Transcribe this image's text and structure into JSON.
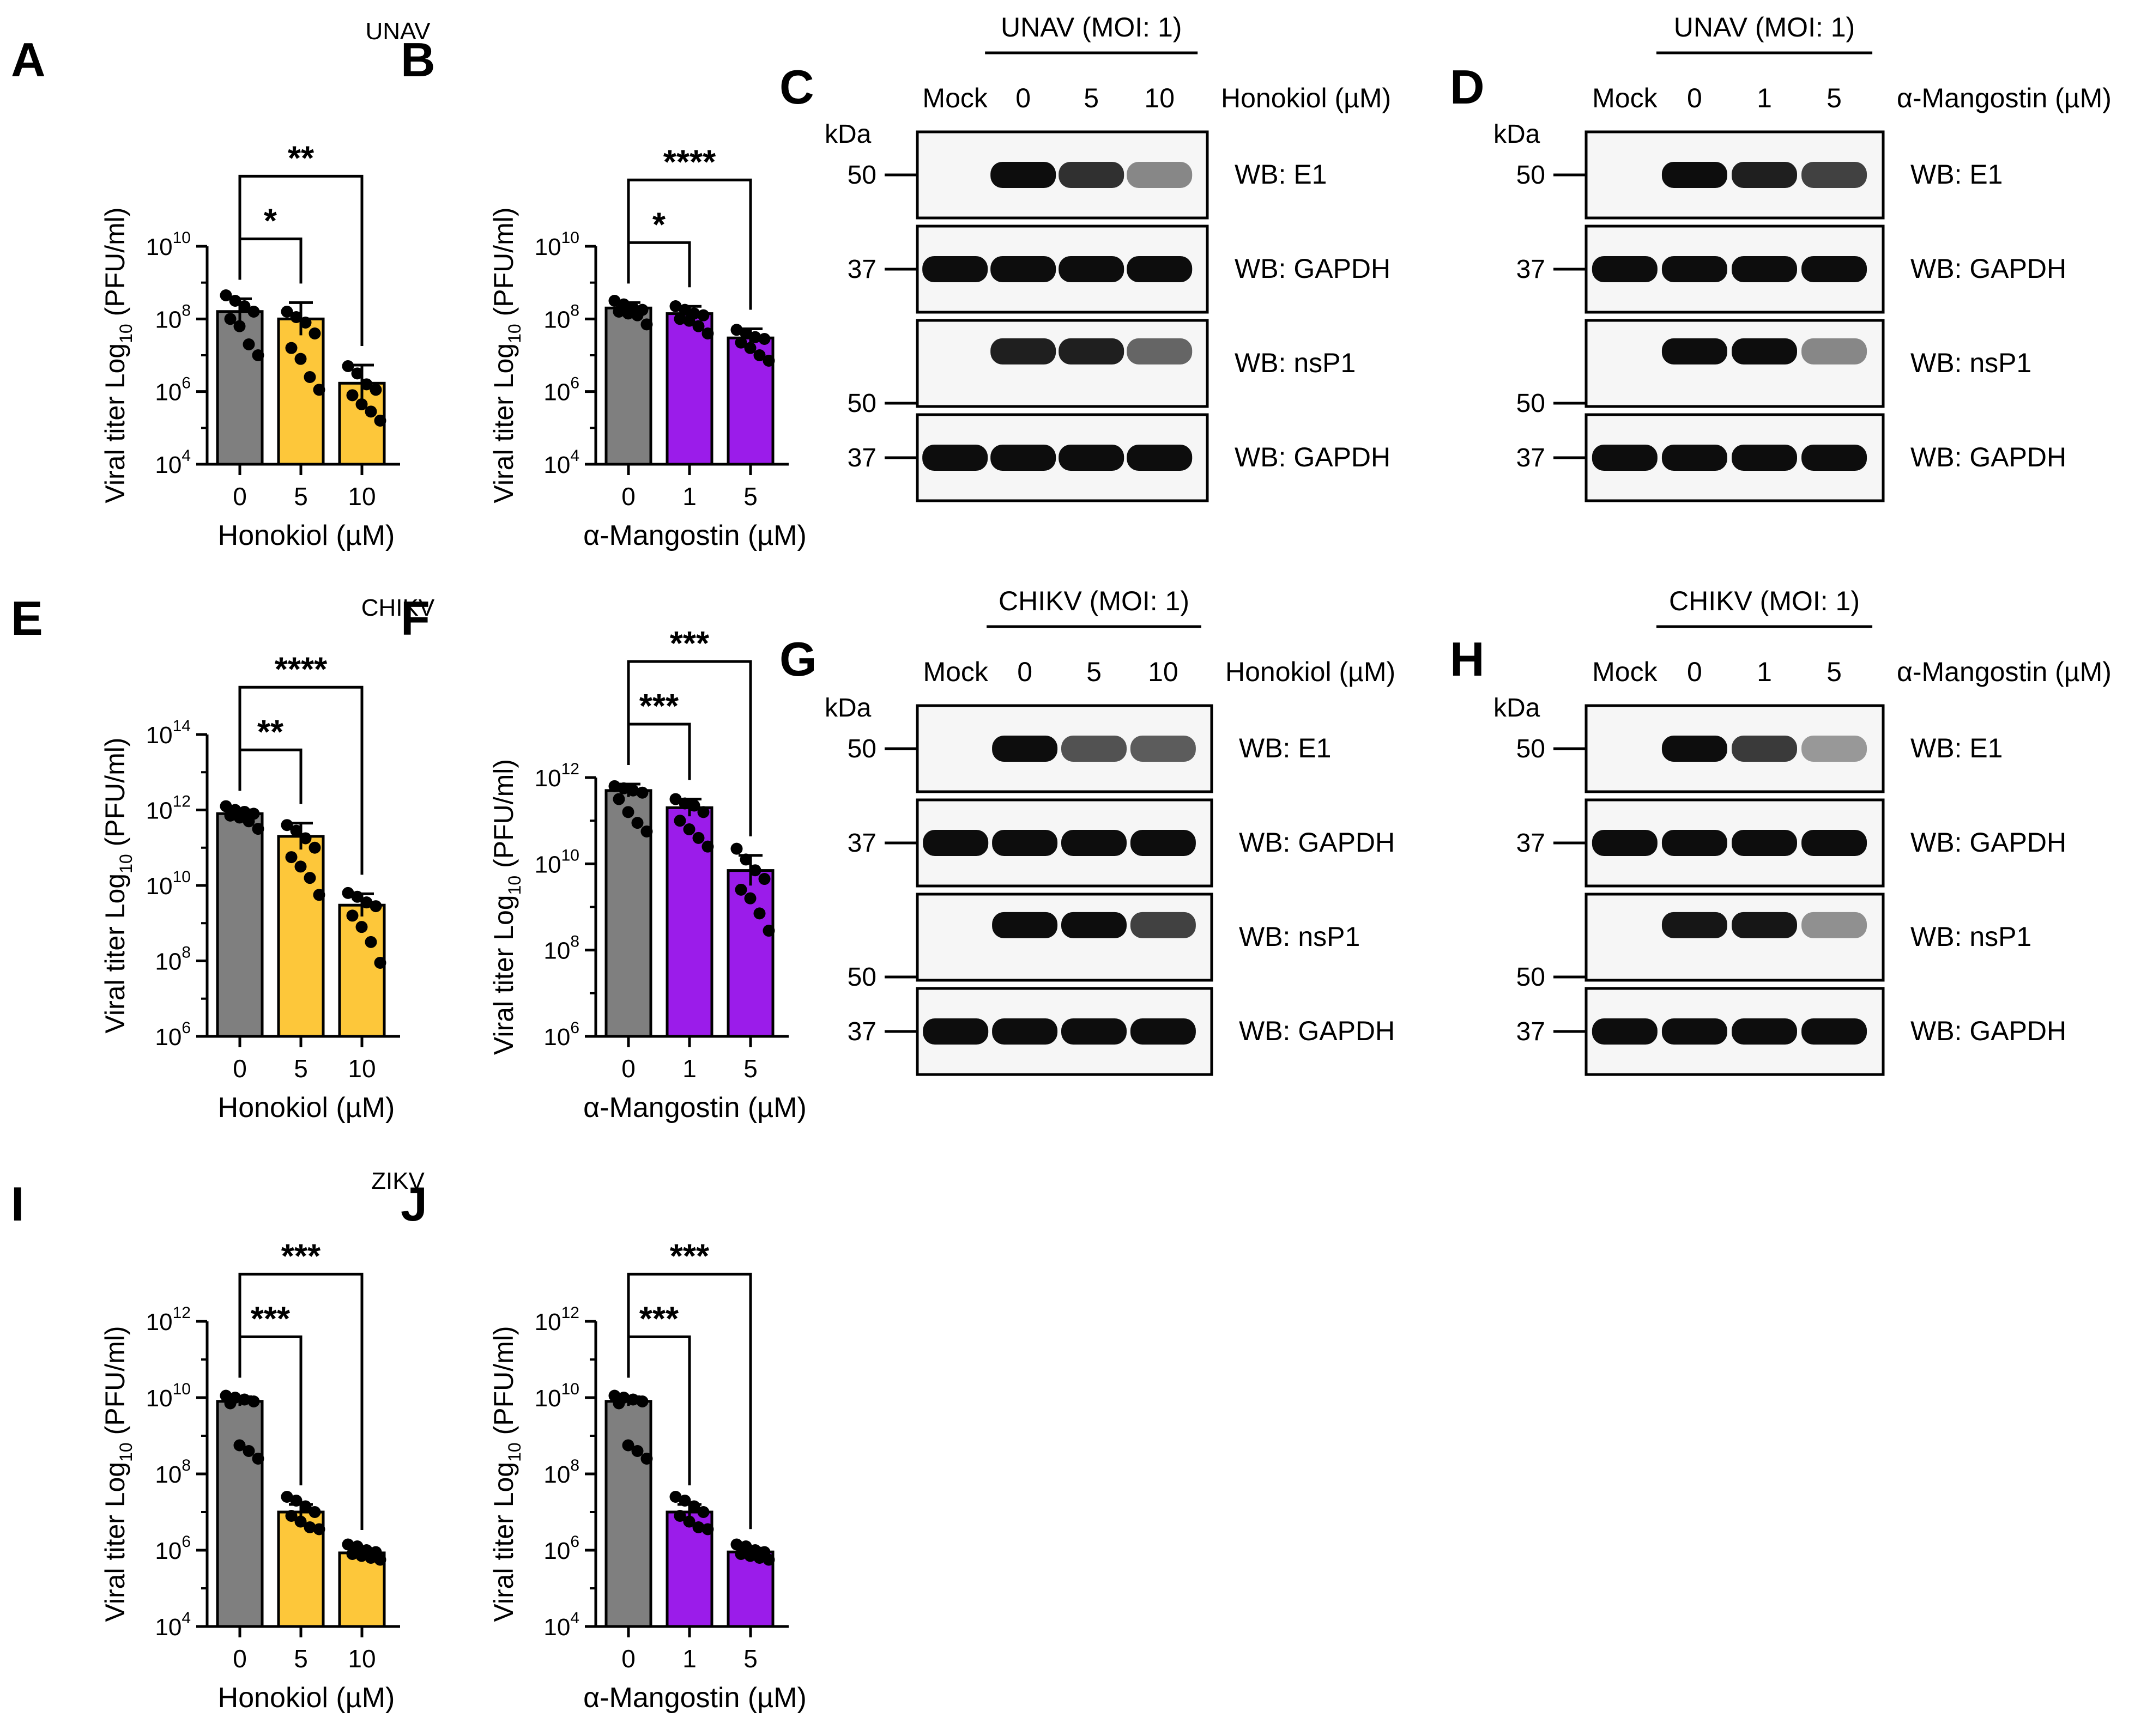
{
  "figure": {
    "groups": [
      "UNAV",
      "CHIKV",
      "ZIKV"
    ]
  },
  "colors": {
    "control": "#7f7f7f",
    "honokiol": "#fdc73a",
    "mangostin": "#9b1cea",
    "dot": "#000000"
  },
  "chart_data": [
    {
      "panel": "A",
      "type": "bar",
      "virus": "UNAV",
      "categories": [
        "0",
        "5",
        "10"
      ],
      "xlabel": "Honokiol (µM)",
      "ylabel_main": "Viral titer Log",
      "ylabel_sub": "10",
      "ylabel_tail": " (PFU/ml)",
      "yscale": "log10",
      "ylim_exp": [
        4,
        10
      ],
      "yticks_exp": [
        4,
        6,
        8,
        10
      ],
      "series": [
        {
          "name": "titer",
          "values": [
            160000000.0,
            100000000.0,
            1700000.0
          ],
          "errors_exp": [
            0.35,
            0.45,
            0.5
          ]
        }
      ],
      "points_exp": [
        [
          8.65,
          8.5,
          8.35,
          8.2,
          8.0,
          7.8,
          7.3,
          7.0
        ],
        [
          8.2,
          8.05,
          7.9,
          7.6,
          7.2,
          6.9,
          6.4,
          6.05
        ],
        [
          6.7,
          6.5,
          6.2,
          6.05,
          5.9,
          5.65,
          5.45,
          5.2
        ]
      ],
      "colors": [
        "control",
        "honokiol",
        "honokiol"
      ],
      "significance": [
        {
          "from": 0,
          "to": 1,
          "label": "*"
        },
        {
          "from": 0,
          "to": 2,
          "label": "**"
        }
      ]
    },
    {
      "panel": "B",
      "type": "bar",
      "virus": "UNAV",
      "categories": [
        "0",
        "1",
        "5"
      ],
      "xlabel": "α-Mangostin (µM)",
      "ylabel_main": "Viral titer Log",
      "ylabel_sub": "10",
      "ylabel_tail": " (PFU/ml)",
      "yscale": "log10",
      "ylim_exp": [
        4,
        10
      ],
      "yticks_exp": [
        4,
        6,
        8,
        10
      ],
      "series": [
        {
          "name": "titer",
          "values": [
            200000000.0,
            140000000.0,
            30000000.0
          ],
          "errors_exp": [
            0.15,
            0.2,
            0.25
          ]
        }
      ],
      "points_exp": [
        [
          8.5,
          8.4,
          8.3,
          8.25,
          8.2,
          8.15,
          8.1,
          7.85
        ],
        [
          8.35,
          8.25,
          8.15,
          8.1,
          8.0,
          7.95,
          7.8,
          7.6
        ],
        [
          7.7,
          7.6,
          7.5,
          7.45,
          7.35,
          7.2,
          7.0,
          6.85
        ]
      ],
      "colors": [
        "control",
        "mangostin",
        "mangostin"
      ],
      "significance": [
        {
          "from": 0,
          "to": 1,
          "label": "*"
        },
        {
          "from": 0,
          "to": 2,
          "label": "****"
        }
      ]
    },
    {
      "panel": "E",
      "type": "bar",
      "virus": "CHIKV",
      "categories": [
        "0",
        "5",
        "10"
      ],
      "xlabel": "Honokiol (µM)",
      "ylabel_main": "Viral titer Log",
      "ylabel_sub": "10",
      "ylabel_tail": " (PFU/ml)",
      "yscale": "log10",
      "ylim_exp": [
        6,
        14
      ],
      "yticks_exp": [
        6,
        8,
        10,
        12,
        14
      ],
      "series": [
        {
          "name": "titer",
          "values": [
            800000000000.0,
            200000000000.0,
            3000000000.0
          ],
          "errors_exp": [
            0.1,
            0.35,
            0.3
          ]
        }
      ],
      "points_exp": [
        [
          12.1,
          12.0,
          11.95,
          11.9,
          11.85,
          11.8,
          11.7,
          11.5
        ],
        [
          11.6,
          11.45,
          11.25,
          11.0,
          10.75,
          10.5,
          10.2,
          9.75
        ],
        [
          9.8,
          9.7,
          9.55,
          9.45,
          9.2,
          8.9,
          8.5,
          7.95
        ]
      ],
      "colors": [
        "control",
        "honokiol",
        "honokiol"
      ],
      "significance": [
        {
          "from": 0,
          "to": 1,
          "label": "**"
        },
        {
          "from": 0,
          "to": 2,
          "label": "****"
        }
      ]
    },
    {
      "panel": "F",
      "type": "bar",
      "virus": "CHIKV",
      "categories": [
        "0",
        "1",
        "5"
      ],
      "xlabel": "α-Mangostin (µM)",
      "ylabel_main": "Viral titer Log",
      "ylabel_sub": "10",
      "ylabel_tail": " (PFU/ml)",
      "yscale": "log10",
      "ylim_exp": [
        6,
        12
      ],
      "yticks_exp": [
        6,
        8,
        10,
        12
      ],
      "series": [
        {
          "name": "titer",
          "values": [
            500000000000.0,
            200000000000.0,
            7000000000.0
          ],
          "errors_exp": [
            0.15,
            0.2,
            0.35
          ]
        }
      ],
      "points_exp": [
        [
          11.8,
          11.75,
          11.7,
          11.65,
          11.5,
          11.2,
          10.95,
          10.75
        ],
        [
          11.5,
          11.4,
          11.35,
          11.2,
          11.0,
          10.8,
          10.6,
          10.4
        ],
        [
          10.35,
          10.1,
          9.85,
          9.65,
          9.4,
          9.2,
          8.85,
          8.45
        ]
      ],
      "colors": [
        "control",
        "mangostin",
        "mangostin"
      ],
      "significance": [
        {
          "from": 0,
          "to": 1,
          "label": "***"
        },
        {
          "from": 0,
          "to": 2,
          "label": "***"
        }
      ]
    },
    {
      "panel": "I",
      "type": "bar",
      "virus": "ZIKV",
      "categories": [
        "0",
        "5",
        "10"
      ],
      "xlabel": "Honokiol (µM)",
      "ylabel_main": "Viral titer Log",
      "ylabel_sub": "10",
      "ylabel_tail": " (PFU/ml)",
      "yscale": "log10",
      "ylim_exp": [
        4,
        12
      ],
      "yticks_exp": [
        4,
        6,
        8,
        10,
        12
      ],
      "series": [
        {
          "name": "titer",
          "values": [
            8000000000.0,
            10000000.0,
            850000.0
          ],
          "errors_exp": [
            0.12,
            0.2,
            0.1
          ]
        }
      ],
      "points_exp": [
        [
          10.05,
          10.0,
          9.95,
          9.9,
          9.85,
          8.75,
          8.6,
          8.4
        ],
        [
          7.4,
          7.3,
          7.15,
          7.0,
          6.9,
          6.75,
          6.6,
          6.55
        ],
        [
          6.15,
          6.1,
          6.0,
          5.95,
          5.9,
          5.85,
          5.8,
          5.75
        ]
      ],
      "colors": [
        "control",
        "honokiol",
        "honokiol"
      ],
      "significance": [
        {
          "from": 0,
          "to": 1,
          "label": "***"
        },
        {
          "from": 0,
          "to": 2,
          "label": "***"
        }
      ]
    },
    {
      "panel": "J",
      "type": "bar",
      "virus": "ZIKV",
      "categories": [
        "0",
        "1",
        "5"
      ],
      "xlabel": "α-Mangostin (µM)",
      "ylabel_main": "Viral titer Log",
      "ylabel_sub": "10",
      "ylabel_tail": " (PFU/ml)",
      "yscale": "log10",
      "ylim_exp": [
        4,
        12
      ],
      "yticks_exp": [
        4,
        6,
        8,
        10,
        12
      ],
      "series": [
        {
          "name": "titer",
          "values": [
            8000000000.0,
            10000000.0,
            900000.0
          ],
          "errors_exp": [
            0.12,
            0.2,
            0.1
          ]
        }
      ],
      "points_exp": [
        [
          10.05,
          10.0,
          9.95,
          9.9,
          9.85,
          8.75,
          8.6,
          8.4
        ],
        [
          7.4,
          7.3,
          7.15,
          7.0,
          6.9,
          6.75,
          6.6,
          6.55
        ],
        [
          6.15,
          6.1,
          6.0,
          5.95,
          5.9,
          5.85,
          5.8,
          5.75
        ]
      ],
      "colors": [
        "control",
        "mangostin",
        "mangostin"
      ],
      "significance": [
        {
          "from": 0,
          "to": 1,
          "label": "***"
        },
        {
          "from": 0,
          "to": 2,
          "label": "***"
        }
      ]
    }
  ],
  "blots": [
    {
      "panel": "C",
      "header": "UNAV (MOI: 1)",
      "lanes": [
        "Mock",
        "0",
        "5",
        "10"
      ],
      "treatment": "Honokiol (µM)",
      "kda_label": "kDa",
      "rows": [
        {
          "marker": "50",
          "label": "WB: E1",
          "intensity": [
            0,
            1.0,
            0.8,
            0.3
          ]
        },
        {
          "marker": "37",
          "label": "WB: GAPDH",
          "intensity": [
            1.0,
            1.0,
            1.0,
            1.0
          ]
        },
        {
          "marker": "50",
          "label": "WB: nsP1",
          "intensity": [
            0,
            0.9,
            0.9,
            0.5
          ]
        },
        {
          "marker": "37",
          "label": "WB: GAPDH",
          "intensity": [
            1.0,
            1.0,
            1.0,
            1.0
          ]
        }
      ]
    },
    {
      "panel": "D",
      "header": "UNAV (MOI: 1)",
      "lanes": [
        "Mock",
        "0",
        "1",
        "5"
      ],
      "treatment": "α-Mangostin (µM)",
      "kda_label": "kDa",
      "rows": [
        {
          "marker": "50",
          "label": "WB: E1",
          "intensity": [
            0,
            1.0,
            0.9,
            0.7
          ]
        },
        {
          "marker": "37",
          "label": "WB: GAPDH",
          "intensity": [
            1.0,
            1.0,
            1.0,
            1.0
          ]
        },
        {
          "marker": "50",
          "label": "WB: nsP1",
          "intensity": [
            0,
            1.0,
            1.0,
            0.3
          ]
        },
        {
          "marker": "37",
          "label": "WB: GAPDH",
          "intensity": [
            1.0,
            1.0,
            1.0,
            1.0
          ]
        }
      ]
    },
    {
      "panel": "G",
      "header": "CHIKV (MOI: 1)",
      "lanes": [
        "Mock",
        "0",
        "5",
        "10"
      ],
      "treatment": "Honokiol (µM)",
      "kda_label": "kDa",
      "rows": [
        {
          "marker": "50",
          "label": "WB: E1",
          "intensity": [
            0,
            1.0,
            0.6,
            0.55
          ]
        },
        {
          "marker": "37",
          "label": "WB: GAPDH",
          "intensity": [
            1.0,
            1.0,
            1.0,
            1.0
          ]
        },
        {
          "marker": "50",
          "label": "WB: nsP1",
          "intensity": [
            0,
            1.0,
            1.0,
            0.7
          ]
        },
        {
          "marker": "37",
          "label": "WB: GAPDH",
          "intensity": [
            1.0,
            1.0,
            1.0,
            1.0
          ]
        }
      ]
    },
    {
      "panel": "H",
      "header": "CHIKV (MOI: 1)",
      "lanes": [
        "Mock",
        "0",
        "1",
        "5"
      ],
      "treatment": "α-Mangostin (µM)",
      "kda_label": "kDa",
      "rows": [
        {
          "marker": "50",
          "label": "WB: E1",
          "intensity": [
            0,
            1.0,
            0.75,
            0.2
          ]
        },
        {
          "marker": "37",
          "label": "WB: GAPDH",
          "intensity": [
            1.0,
            1.0,
            1.0,
            1.0
          ]
        },
        {
          "marker": "50",
          "label": "WB: nsP1",
          "intensity": [
            0,
            0.95,
            0.95,
            0.25
          ]
        },
        {
          "marker": "37",
          "label": "WB: GAPDH",
          "intensity": [
            1.0,
            1.0,
            1.0,
            1.0
          ]
        }
      ]
    }
  ]
}
